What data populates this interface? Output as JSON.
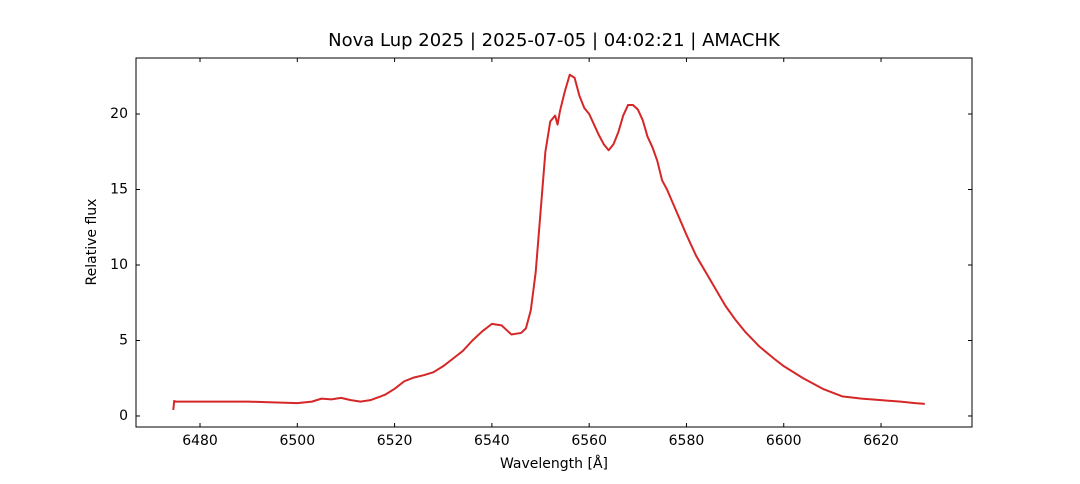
{
  "chart_data": {
    "type": "line",
    "title": "Nova Lup 2025 | 2025-07-05 | 04:02:21 | AMACHK",
    "x_label": "Wavelength [Å]",
    "y_label": "Relative flux",
    "color": "#d62728",
    "x": [
      6474.5,
      6474.7,
      6475,
      6480,
      6490,
      6495,
      6500,
      6503,
      6505,
      6507,
      6509,
      6511,
      6513,
      6515,
      6518,
      6520,
      6522,
      6524,
      6526,
      6528,
      6530,
      6532,
      6534,
      6536,
      6538,
      6540,
      6542,
      6543,
      6544,
      6546,
      6547,
      6548,
      6549,
      6550,
      6551,
      6552,
      6553,
      6553.5,
      6554,
      6555,
      6556,
      6557,
      6558,
      6559,
      6560,
      6561,
      6562,
      6563,
      6564,
      6565,
      6566,
      6567,
      6568,
      6569,
      6570,
      6571,
      6572,
      6573,
      6574,
      6575,
      6576,
      6578,
      6580,
      6582,
      6584,
      6586,
      6588,
      6590,
      6592,
      6595,
      6598,
      6600,
      6604,
      6608,
      6612,
      6616,
      6620,
      6624,
      6627,
      6629
    ],
    "values": [
      0.4,
      1.0,
      0.95,
      0.95,
      0.95,
      0.9,
      0.85,
      0.95,
      1.15,
      1.1,
      1.2,
      1.05,
      0.95,
      1.05,
      1.4,
      1.8,
      2.3,
      2.55,
      2.7,
      2.9,
      3.3,
      3.8,
      4.3,
      5.0,
      5.6,
      6.1,
      6.0,
      5.7,
      5.4,
      5.5,
      5.8,
      7.0,
      9.5,
      13.5,
      17.5,
      19.5,
      19.9,
      19.3,
      20.2,
      21.5,
      22.6,
      22.4,
      21.2,
      20.4,
      20.0,
      19.3,
      18.6,
      18.0,
      17.6,
      18.0,
      18.8,
      19.9,
      20.6,
      20.6,
      20.3,
      19.6,
      18.5,
      17.8,
      16.9,
      15.6,
      15.0,
      13.5,
      12.0,
      10.6,
      9.5,
      8.4,
      7.3,
      6.4,
      5.6,
      4.6,
      3.8,
      3.3,
      2.5,
      1.8,
      1.3,
      1.15,
      1.05,
      0.95,
      0.85,
      0.8
    ],
    "xlim": [
      6466.84,
      6638.7
    ],
    "ylim": [
      -0.73,
      23.71
    ],
    "xticks": [
      6480,
      6500,
      6520,
      6540,
      6560,
      6580,
      6600,
      6620
    ],
    "yticks": [
      0,
      5,
      10,
      15,
      20
    ]
  }
}
